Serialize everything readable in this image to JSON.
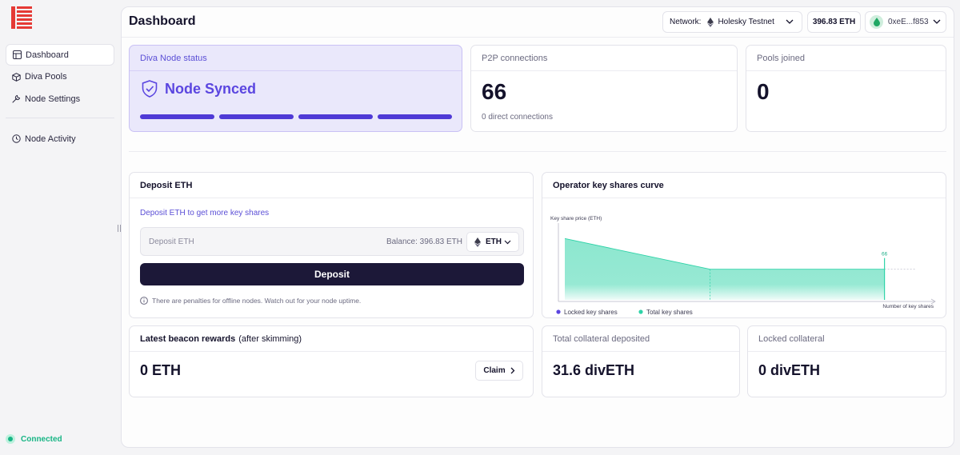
{
  "sidebar": {
    "items": [
      {
        "label": "Dashboard",
        "icon": "dashboard-icon",
        "active": true
      },
      {
        "label": "Diva Pools",
        "icon": "cube-icon"
      },
      {
        "label": "Node Settings",
        "icon": "wrench-icon"
      },
      {
        "label": "Node Activity",
        "icon": "clock-icon"
      }
    ],
    "status": "Connected"
  },
  "header": {
    "title": "Dashboard",
    "network_label": "Network:",
    "network_value": "Holesky Testnet",
    "balance": "396.83 ETH",
    "wallet": "0xeE...f853"
  },
  "node_status": {
    "title": "Diva Node status",
    "value": "Node Synced",
    "progress": 1.0
  },
  "p2p": {
    "title": "P2P connections",
    "value": "66",
    "sub": "0 direct connections"
  },
  "pools": {
    "title": "Pools joined",
    "value": "0"
  },
  "deposit": {
    "title": "Deposit ETH",
    "subtitle": "Deposit ETH to get more key shares",
    "placeholder": "Deposit ETH",
    "balance": "Balance: 396.83 ETH",
    "token": "ETH",
    "button": "Deposit",
    "note": "There are penalties for offline nodes. Watch out for your node uptime."
  },
  "curve": {
    "title": "Operator key shares curve"
  },
  "chart_data": {
    "type": "area",
    "title": "Operator key shares curve",
    "ylabel": "Key share price (ETH)",
    "xlabel": "Number of key shares",
    "series": [
      {
        "name": "Total key shares",
        "color": "#2fd3a8",
        "points": [
          [
            0,
            1.0
          ],
          [
            30,
            0.5
          ],
          [
            66,
            0.5
          ]
        ]
      }
    ],
    "annotations": [
      {
        "x": 66,
        "label": "66"
      }
    ],
    "legend": [
      {
        "name": "Locked key shares",
        "color": "#5b46e0"
      },
      {
        "name": "Total key shares",
        "color": "#2fd3a8"
      }
    ],
    "xlim": [
      0,
      73
    ],
    "ylim": [
      0,
      1.2
    ]
  },
  "rewards": {
    "title": "Latest beacon rewards",
    "title_suffix": "(after skimming)",
    "value": "0 ETH",
    "claim": "Claim"
  },
  "collateral": {
    "title": "Total collateral deposited",
    "value": "31.6 divETH"
  },
  "locked": {
    "title": "Locked collateral",
    "value": "0 divETH"
  }
}
